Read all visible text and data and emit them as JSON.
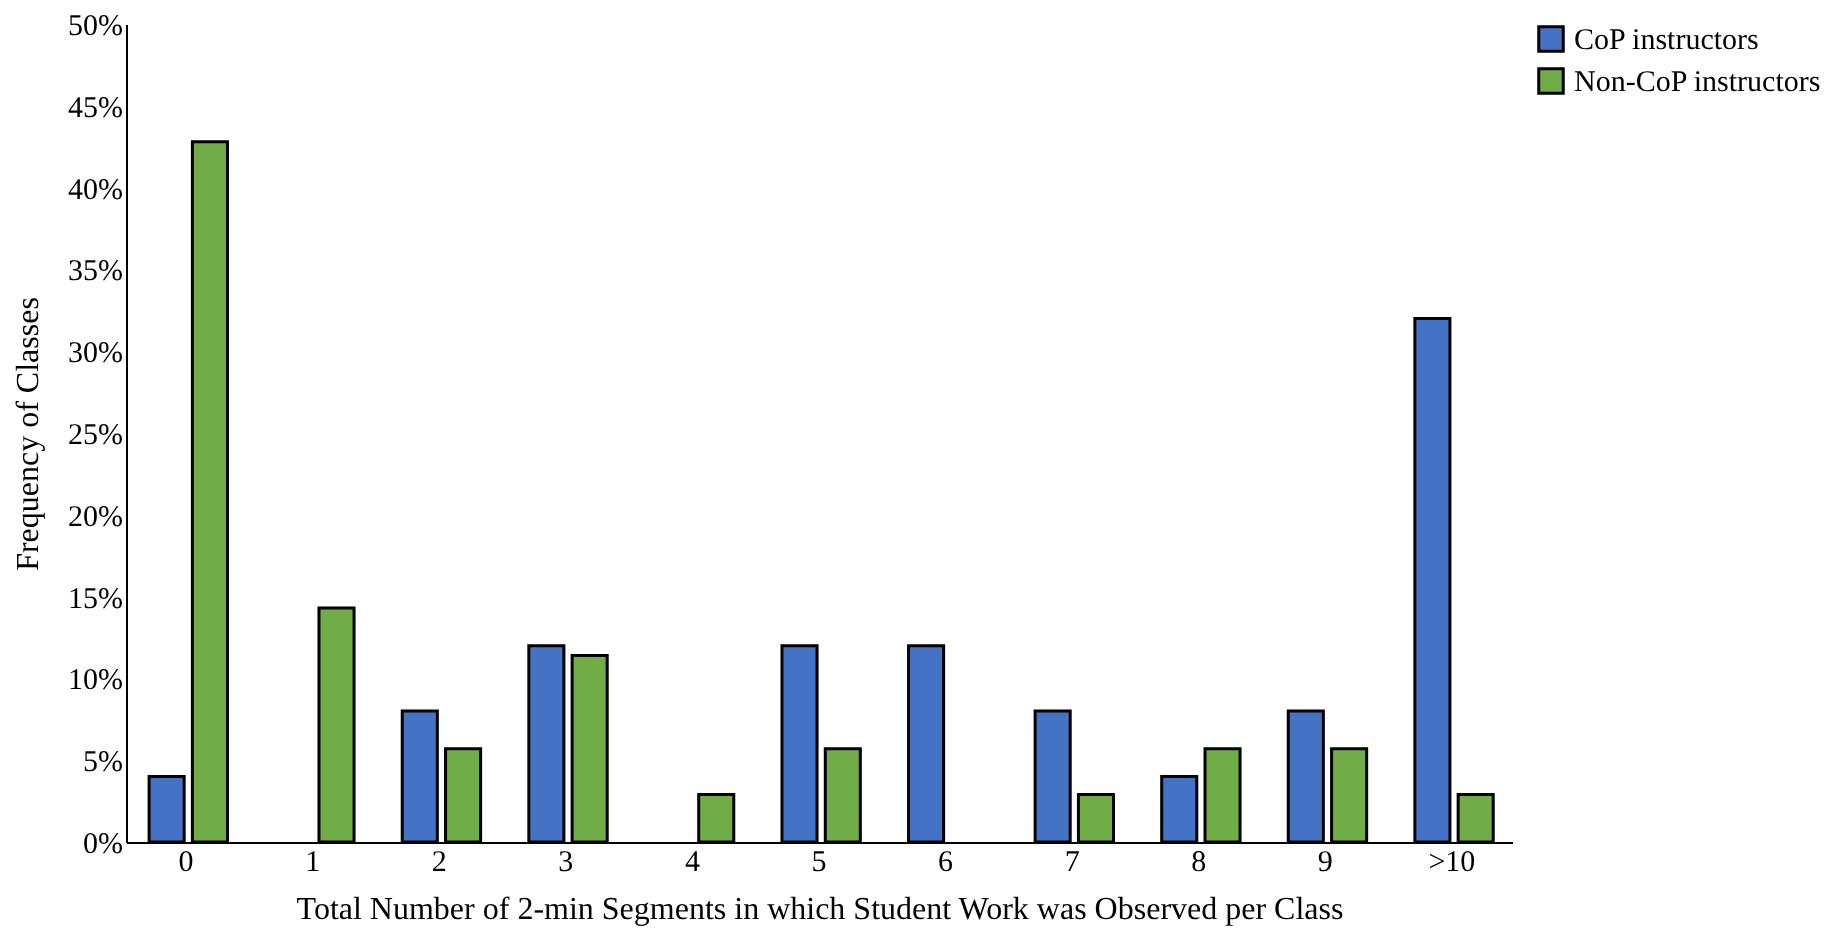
{
  "chart_data": {
    "type": "bar",
    "xlabel": "Total Number of 2-min Segments in which Student Work was Observed per Class",
    "ylabel": "Frequency of Classes",
    "categories": [
      "0",
      "1",
      "2",
      "3",
      "4",
      "5",
      "6",
      "7",
      "8",
      "9",
      ">10"
    ],
    "series": [
      {
        "name": "CoP instructors",
        "color": "#4472c4",
        "values": [
          4,
          0,
          8,
          12,
          0,
          12,
          12,
          8,
          4,
          8,
          32
        ]
      },
      {
        "name": "Non-CoP instructors",
        "color": "#70ad47",
        "values": [
          42.8,
          14.3,
          5.7,
          11.4,
          2.9,
          5.7,
          0,
          2.9,
          5.7,
          5.7,
          2.9
        ]
      }
    ],
    "ylim": [
      0,
      50
    ],
    "yticks": [
      {
        "value": 0,
        "label": "0%"
      },
      {
        "value": 5,
        "label": "5%"
      },
      {
        "value": 10,
        "label": "10%"
      },
      {
        "value": 15,
        "label": "15%"
      },
      {
        "value": 20,
        "label": "20%"
      },
      {
        "value": 25,
        "label": "25%"
      },
      {
        "value": 30,
        "label": "30%"
      },
      {
        "value": 35,
        "label": "35%"
      },
      {
        "value": 40,
        "label": "40%"
      },
      {
        "value": 45,
        "label": "45%"
      },
      {
        "value": 50,
        "label": "50%"
      }
    ],
    "grid": false,
    "legend": "right"
  }
}
